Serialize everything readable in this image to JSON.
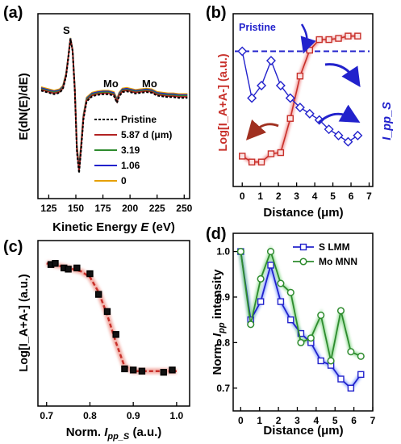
{
  "chart_data": [
    {
      "panel": "(a)",
      "type": "line",
      "xlabel": "Kinetic Energy E (eV)",
      "xlabel_main": "Kinetic Energy",
      "xlabel_sym": "E",
      "xlabel_unit": "(eV)",
      "ylabel": "E(dN(E)/dE)",
      "xlim": [
        115,
        255
      ],
      "xticks": [
        "125",
        "150",
        "175",
        "200",
        "225",
        "250"
      ],
      "grid": false,
      "legend_position": "bottom-right",
      "annotations": [
        "S",
        "Mo",
        "Mo"
      ],
      "series": [
        {
          "name": "Pristine",
          "color": "#000000",
          "dash": true
        },
        {
          "name": "5.87",
          "color": "#b22222"
        },
        {
          "name": "3.19",
          "color": "#2e8b2e"
        },
        {
          "name": "1.06",
          "color": "#2222cc"
        },
        {
          "name": "0",
          "color": "#e6a000"
        }
      ],
      "legend_unit_note": "d (μm)",
      "curve": {
        "x": [
          118,
          125,
          130,
          135,
          138,
          141,
          143,
          145,
          147,
          149,
          151,
          153,
          155,
          157,
          160,
          165,
          170,
          175,
          180,
          185,
          188,
          190,
          193,
          197,
          200,
          205,
          210,
          215,
          220,
          225,
          230,
          235,
          240,
          245,
          250,
          253
        ],
        "y": [
          0.1,
          0.07,
          0.05,
          0.07,
          0.12,
          0.3,
          0.55,
          0.82,
          0.65,
          0.1,
          -0.75,
          -1.05,
          -0.7,
          -0.3,
          -0.05,
          0.02,
          0.04,
          0.05,
          0.05,
          0.03,
          -0.07,
          0.02,
          0.08,
          0.09,
          0.08,
          0.06,
          0.07,
          0.08,
          0.07,
          0.03,
          0.02,
          0.01,
          0.01,
          0.0,
          0.0,
          0.0
        ]
      }
    },
    {
      "panel": "(b)",
      "type": "line",
      "xlabel": "Distance (μm)",
      "xlabel_main": "Distance",
      "xlabel_unit": "(μm)",
      "ylabel_left": "Log[I_A+A-] (a.u.)",
      "ylabel_right": "I_pp_S",
      "xlim": [
        -0.5,
        7.2
      ],
      "xticks": [
        "0",
        "1",
        "2",
        "3",
        "4",
        "5",
        "6",
        "7"
      ],
      "annotation": "Pristine",
      "series": [
        {
          "name": "Log[I A+A-]",
          "color": "#c8302a",
          "marker": "square",
          "x": [
            0,
            0.53,
            1.06,
            1.59,
            2.12,
            2.65,
            3.19,
            3.72,
            4.25,
            4.78,
            5.31,
            5.84,
            6.37
          ],
          "y": [
            0.0,
            -0.05,
            -0.05,
            0.02,
            0.03,
            0.32,
            0.68,
            0.9,
            0.99,
            0.99,
            1.0,
            1.02,
            1.02
          ]
        },
        {
          "name": "I pp_S",
          "color": "#2222cc",
          "marker": "diamond",
          "x": [
            0,
            0.53,
            1.06,
            1.59,
            2.12,
            2.65,
            3.19,
            3.72,
            4.25,
            4.78,
            5.31,
            5.84,
            6.37
          ],
          "y": [
            1.0,
            0.85,
            0.89,
            0.97,
            0.89,
            0.85,
            0.82,
            0.8,
            0.78,
            0.75,
            0.73,
            0.71,
            0.73
          ]
        },
        {
          "name": "Pristine",
          "color": "#2222cc",
          "dash": true,
          "y": 1.0
        }
      ]
    },
    {
      "panel": "(c)",
      "type": "scatter",
      "xlabel": "Norm. I_pp_S (a.u.)",
      "xlabel_main": "Norm.",
      "xlabel_sym": "I",
      "xlabel_sub": "pp_S",
      "xlabel_unit": "(a.u.)",
      "ylabel": "Log[I_A+A-] (a.u.)",
      "xlim": [
        0.68,
        1.03
      ],
      "xticks": [
        "0.7",
        "0.8",
        "0.9",
        "1.0"
      ],
      "series": [
        {
          "name": "data",
          "color": "#000000",
          "marker": "square",
          "x": [
            0.71,
            0.72,
            0.74,
            0.75,
            0.77,
            0.8,
            0.82,
            0.84,
            0.86,
            0.88,
            0.9,
            0.92,
            0.97,
            0.99
          ],
          "y": [
            0.96,
            0.97,
            0.93,
            0.92,
            0.93,
            0.88,
            0.7,
            0.55,
            0.35,
            0.05,
            0.04,
            0.03,
            0.02,
            0.04
          ]
        },
        {
          "name": "fit",
          "color": "#c8302a",
          "dash": true,
          "x": [
            0.7,
            0.74,
            0.78,
            0.8,
            0.82,
            0.84,
            0.86,
            0.88,
            0.9,
            0.94,
            1.0
          ],
          "y": [
            0.97,
            0.94,
            0.9,
            0.85,
            0.72,
            0.52,
            0.28,
            0.07,
            0.03,
            0.03,
            0.03
          ]
        }
      ]
    },
    {
      "panel": "(d)",
      "type": "line",
      "xlabel": "Distance (μm)",
      "xlabel_main": "Distance",
      "xlabel_unit": "(μm)",
      "ylabel": "Norm. I_pp intensity",
      "ylabel_main": "Norm.",
      "ylabel_sym": "I",
      "ylabel_sub": "pp",
      "ylabel_tail": "intensity",
      "xlim": [
        -0.4,
        7.0
      ],
      "ylim": [
        0.65,
        1.04
      ],
      "xticks": [
        "0",
        "1",
        "2",
        "3",
        "4",
        "5",
        "6",
        "7"
      ],
      "yticks": [
        "0.7",
        "0.8",
        "0.9",
        "1.0"
      ],
      "legend_position": "top-right",
      "series": [
        {
          "name": "S LMM",
          "color": "#2222cc",
          "marker": "square",
          "x": [
            0,
            0.53,
            1.06,
            1.59,
            2.12,
            2.65,
            3.19,
            3.72,
            4.25,
            4.78,
            5.31,
            5.84,
            6.37
          ],
          "y": [
            1.0,
            0.85,
            0.89,
            0.97,
            0.89,
            0.85,
            0.82,
            0.8,
            0.76,
            0.75,
            0.72,
            0.7,
            0.73
          ]
        },
        {
          "name": "Mo MNN",
          "color": "#2e8b2e",
          "marker": "circle",
          "x": [
            0,
            0.53,
            1.06,
            1.59,
            2.12,
            2.65,
            3.19,
            3.72,
            4.25,
            4.78,
            5.31,
            5.84,
            6.37
          ],
          "y": [
            1.0,
            0.84,
            0.94,
            1.0,
            0.93,
            0.91,
            0.8,
            0.81,
            0.86,
            0.76,
            0.87,
            0.78,
            0.77
          ]
        }
      ]
    }
  ]
}
